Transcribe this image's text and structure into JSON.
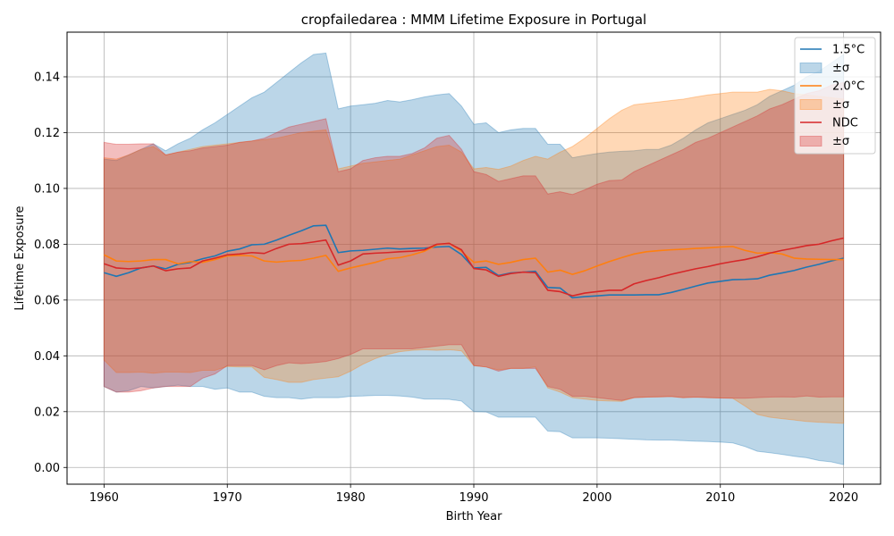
{
  "chart_data": {
    "type": "line",
    "title": "cropfailedarea : MMM Lifetime Exposure in Portugal",
    "xlabel": "Birth Year",
    "ylabel": "Lifetime Exposure",
    "xlim": [
      1957,
      2023
    ],
    "ylim": [
      -0.006,
      0.156
    ],
    "xticks": [
      1960,
      1970,
      1980,
      1990,
      2000,
      2010,
      2020
    ],
    "yticks": [
      0.0,
      0.02,
      0.04,
      0.06,
      0.08,
      0.1,
      0.12,
      0.14
    ],
    "ytick_labels": [
      "0.00",
      "0.02",
      "0.04",
      "0.06",
      "0.08",
      "0.10",
      "0.12",
      "0.14"
    ],
    "grid": true,
    "legend_position": "top-right",
    "x": [
      1960,
      1961,
      1962,
      1963,
      1964,
      1965,
      1966,
      1967,
      1968,
      1969,
      1970,
      1971,
      1972,
      1973,
      1974,
      1975,
      1976,
      1977,
      1978,
      1979,
      1980,
      1981,
      1982,
      1983,
      1984,
      1985,
      1986,
      1987,
      1988,
      1989,
      1990,
      1991,
      1992,
      1993,
      1994,
      1995,
      1996,
      1997,
      1998,
      1999,
      2000,
      2001,
      2002,
      2003,
      2004,
      2005,
      2006,
      2007,
      2008,
      2009,
      2010,
      2011,
      2012,
      2013,
      2014,
      2015,
      2016,
      2017,
      2018,
      2019,
      2020
    ],
    "series": [
      {
        "name": "1.5°C",
        "band_label": "±σ",
        "color": "#1f77b4",
        "mean": [
          0.0698,
          0.0685,
          0.0698,
          0.0715,
          0.0722,
          0.0712,
          0.0728,
          0.0735,
          0.0748,
          0.0758,
          0.0775,
          0.0783,
          0.0798,
          0.08,
          0.0815,
          0.0832,
          0.0848,
          0.0866,
          0.0868,
          0.077,
          0.0776,
          0.0778,
          0.0782,
          0.0786,
          0.0783,
          0.0785,
          0.0786,
          0.079,
          0.0792,
          0.0763,
          0.0715,
          0.0717,
          0.0688,
          0.0697,
          0.07,
          0.0703,
          0.0645,
          0.0643,
          0.0608,
          0.0612,
          0.0615,
          0.0618,
          0.0618,
          0.0618,
          0.0619,
          0.0619,
          0.0627,
          0.0638,
          0.065,
          0.0661,
          0.0667,
          0.0673,
          0.0674,
          0.0676,
          0.0689,
          0.0697,
          0.0706,
          0.0718,
          0.0728,
          0.074,
          0.075
        ],
        "upper": [
          0.1105,
          0.11,
          0.112,
          0.114,
          0.116,
          0.1135,
          0.116,
          0.118,
          0.121,
          0.1235,
          0.1265,
          0.1295,
          0.1325,
          0.1345,
          0.138,
          0.1415,
          0.145,
          0.148,
          0.1485,
          0.1285,
          0.1295,
          0.13,
          0.1305,
          0.1315,
          0.131,
          0.1318,
          0.1328,
          0.1335,
          0.134,
          0.1295,
          0.123,
          0.1235,
          0.12,
          0.121,
          0.1215,
          0.1215,
          0.1158,
          0.1158,
          0.111,
          0.1118,
          0.1125,
          0.113,
          0.1133,
          0.1135,
          0.114,
          0.114,
          0.1155,
          0.118,
          0.121,
          0.1235,
          0.125,
          0.1265,
          0.128,
          0.13,
          0.133,
          0.135,
          0.137,
          0.14,
          0.142,
          0.145,
          0.148
        ],
        "lower": [
          0.029,
          0.027,
          0.0275,
          0.029,
          0.0285,
          0.029,
          0.0295,
          0.029,
          0.029,
          0.028,
          0.0285,
          0.027,
          0.027,
          0.0255,
          0.025,
          0.025,
          0.0245,
          0.025,
          0.025,
          0.025,
          0.0255,
          0.0256,
          0.0258,
          0.0258,
          0.0256,
          0.0252,
          0.0245,
          0.0245,
          0.0244,
          0.0238,
          0.02,
          0.0199,
          0.018,
          0.018,
          0.018,
          0.018,
          0.013,
          0.0128,
          0.0106,
          0.0106,
          0.0106,
          0.0105,
          0.0103,
          0.0101,
          0.0099,
          0.0098,
          0.0098,
          0.0096,
          0.0094,
          0.0093,
          0.0091,
          0.0088,
          0.0075,
          0.0058,
          0.0053,
          0.0047,
          0.004,
          0.0035,
          0.0025,
          0.002,
          0.001
        ]
      },
      {
        "name": "2.0°C",
        "band_label": "±σ",
        "color": "#ff7f0e",
        "mean": [
          0.0762,
          0.074,
          0.0738,
          0.074,
          0.0745,
          0.0745,
          0.073,
          0.0738,
          0.0735,
          0.0745,
          0.0758,
          0.076,
          0.0758,
          0.074,
          0.0736,
          0.074,
          0.0742,
          0.075,
          0.076,
          0.0703,
          0.0715,
          0.0725,
          0.0735,
          0.0748,
          0.0752,
          0.0762,
          0.0775,
          0.0798,
          0.0804,
          0.0775,
          0.0735,
          0.074,
          0.0728,
          0.0735,
          0.0745,
          0.075,
          0.07,
          0.0707,
          0.0692,
          0.0705,
          0.0722,
          0.0738,
          0.0752,
          0.0765,
          0.0773,
          0.0777,
          0.078,
          0.0782,
          0.0785,
          0.0787,
          0.079,
          0.0792,
          0.0778,
          0.0768,
          0.077,
          0.0765,
          0.075,
          0.0747,
          0.0746,
          0.0745,
          0.0745
        ],
        "upper": [
          0.111,
          0.1105,
          0.112,
          0.114,
          0.115,
          0.112,
          0.113,
          0.114,
          0.115,
          0.1155,
          0.116,
          0.1165,
          0.117,
          0.1175,
          0.118,
          0.119,
          0.12,
          0.1205,
          0.121,
          0.107,
          0.108,
          0.109,
          0.1095,
          0.11,
          0.1105,
          0.112,
          0.1135,
          0.115,
          0.1155,
          0.113,
          0.107,
          0.1075,
          0.1068,
          0.108,
          0.11,
          0.1115,
          0.1105,
          0.113,
          0.115,
          0.118,
          0.1215,
          0.125,
          0.128,
          0.13,
          0.1305,
          0.131,
          0.1315,
          0.132,
          0.1328,
          0.1335,
          0.134,
          0.1345,
          0.1345,
          0.1345,
          0.1355,
          0.135,
          0.134,
          0.1335,
          0.133,
          0.1325,
          0.132
        ],
        "lower": [
          0.0385,
          0.034,
          0.034,
          0.0342,
          0.0338,
          0.0342,
          0.0342,
          0.034,
          0.0348,
          0.0348,
          0.0362,
          0.036,
          0.036,
          0.0323,
          0.0315,
          0.0305,
          0.0305,
          0.0315,
          0.032,
          0.0325,
          0.0345,
          0.037,
          0.039,
          0.0405,
          0.0415,
          0.042,
          0.0422,
          0.042,
          0.0422,
          0.0418,
          0.0365,
          0.036,
          0.035,
          0.0355,
          0.0355,
          0.036,
          0.0285,
          0.027,
          0.025,
          0.0245,
          0.024,
          0.0238,
          0.0237,
          0.025,
          0.0252,
          0.0253,
          0.0254,
          0.025,
          0.0252,
          0.025,
          0.0249,
          0.0248,
          0.022,
          0.019,
          0.018,
          0.0175,
          0.017,
          0.0165,
          0.0162,
          0.016,
          0.0158
        ]
      },
      {
        "name": "NDC",
        "band_label": "±σ",
        "color": "#d62728",
        "mean": [
          0.073,
          0.0715,
          0.0712,
          0.0715,
          0.0722,
          0.0705,
          0.0712,
          0.0715,
          0.074,
          0.075,
          0.0762,
          0.0765,
          0.077,
          0.0767,
          0.0785,
          0.08,
          0.0802,
          0.0808,
          0.0815,
          0.0725,
          0.074,
          0.0765,
          0.0768,
          0.077,
          0.0773,
          0.0775,
          0.078,
          0.08,
          0.0803,
          0.078,
          0.0713,
          0.0708,
          0.0685,
          0.0695,
          0.07,
          0.0698,
          0.0635,
          0.063,
          0.0615,
          0.0625,
          0.063,
          0.0635,
          0.0635,
          0.0658,
          0.067,
          0.068,
          0.0692,
          0.0702,
          0.0712,
          0.072,
          0.073,
          0.0738,
          0.0745,
          0.0755,
          0.0768,
          0.0778,
          0.0786,
          0.0795,
          0.08,
          0.0812,
          0.0822
        ],
        "upper": [
          0.1165,
          0.1158,
          0.1158,
          0.116,
          0.116,
          0.112,
          0.113,
          0.1135,
          0.1145,
          0.115,
          0.1155,
          0.1165,
          0.117,
          0.118,
          0.12,
          0.122,
          0.123,
          0.124,
          0.125,
          0.106,
          0.107,
          0.11,
          0.111,
          0.1115,
          0.1115,
          0.1125,
          0.1145,
          0.118,
          0.119,
          0.114,
          0.106,
          0.105,
          0.1025,
          0.1035,
          0.1045,
          0.1045,
          0.098,
          0.0988,
          0.0978,
          0.0995,
          0.1015,
          0.1028,
          0.103,
          0.106,
          0.108,
          0.11,
          0.112,
          0.114,
          0.1165,
          0.118,
          0.12,
          0.122,
          0.124,
          0.126,
          0.1285,
          0.13,
          0.132,
          0.134,
          0.135,
          0.137,
          0.138
        ],
        "lower": [
          0.029,
          0.027,
          0.027,
          0.0275,
          0.0285,
          0.029,
          0.029,
          0.029,
          0.032,
          0.0335,
          0.0365,
          0.0365,
          0.0365,
          0.035,
          0.0365,
          0.0375,
          0.0372,
          0.0375,
          0.038,
          0.039,
          0.0405,
          0.0425,
          0.0425,
          0.0425,
          0.0425,
          0.0425,
          0.043,
          0.0435,
          0.044,
          0.044,
          0.0365,
          0.036,
          0.0345,
          0.0355,
          0.0355,
          0.0355,
          0.029,
          0.028,
          0.0255,
          0.0255,
          0.025,
          0.0245,
          0.024,
          0.025,
          0.0252,
          0.0253,
          0.0254,
          0.025,
          0.0252,
          0.025,
          0.0249,
          0.0248,
          0.0248,
          0.025,
          0.0252,
          0.0253,
          0.0252,
          0.0256,
          0.0252,
          0.0253,
          0.0253
        ]
      }
    ]
  }
}
